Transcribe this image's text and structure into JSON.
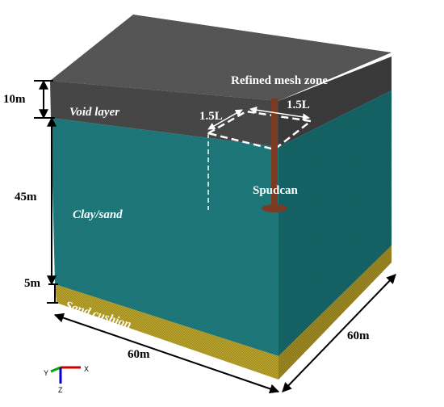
{
  "labels": {
    "void_height": "10m",
    "void_layer": "Void layer",
    "refined_zone": "Refined mesh zone",
    "width_left": "1.5L",
    "width_right": "1.5L",
    "clay_height": "45m",
    "clay_layer": "Clay/sand",
    "spudcan": "Spudcan",
    "sand_height": "5m",
    "sand_layer": "Sand cushion",
    "front_length": "60m",
    "side_length": "60m"
  },
  "axes": {
    "y": "Y",
    "x": "X",
    "z": "Z"
  }
}
